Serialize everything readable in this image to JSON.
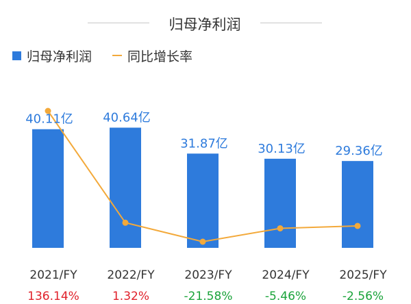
{
  "title": "归母净利润",
  "legend": {
    "bar_label": "归母净利润",
    "line_label": "同比增长率"
  },
  "colors": {
    "bar": "#2e7bdc",
    "bar_label": "#2e7bdc",
    "line": "#f3a93a",
    "positive": "#e0202a",
    "negative": "#1aa33a",
    "axis_text": "#333333"
  },
  "chart_data": {
    "type": "bar",
    "categories": [
      "2021/FY",
      "2022/FY",
      "2023/FY",
      "2024/FY",
      "2025/FY"
    ],
    "series": [
      {
        "name": "归母净利润",
        "type": "bar",
        "values": [
          40.11,
          40.64,
          31.87,
          30.13,
          29.36
        ],
        "labels": [
          "40.11亿",
          "40.64亿",
          "31.87亿",
          "30.13亿",
          "29.36亿"
        ],
        "unit": "亿"
      },
      {
        "name": "同比增长率",
        "type": "line",
        "values": [
          136.14,
          1.32,
          -21.58,
          -5.46,
          -2.56
        ],
        "labels": [
          "136.14%",
          "1.32%",
          "-21.58%",
          "-5.46%",
          "-2.56%"
        ],
        "unit": "%"
      }
    ],
    "title": "归母净利润",
    "legend_position": "top-left",
    "grid": false
  }
}
